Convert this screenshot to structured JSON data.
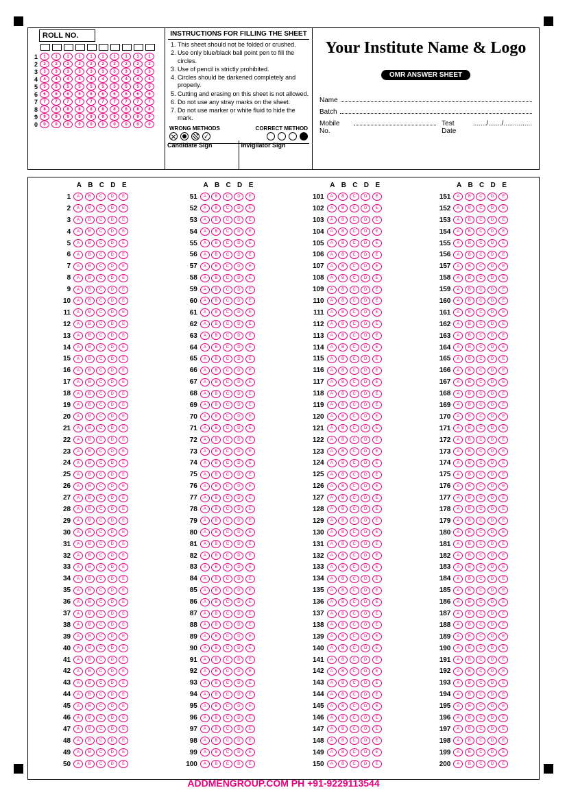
{
  "roll": {
    "title": "ROLL NO.",
    "columns": 10,
    "digits": [
      "1",
      "2",
      "3",
      "4",
      "5",
      "6",
      "7",
      "8",
      "9",
      "0"
    ]
  },
  "instructions": {
    "title": "INSTRUCTIONS FOR FILLING THE SHEET",
    "items": [
      "This sheet should not be folded or crushed.",
      "Use only blue/black ball point pen to fill the circles.",
      "Use of pencil is strictly prohibited.",
      "Circles should be darkened completely and properly.",
      "Cutting and erasing on this sheet is not allowed.",
      "Do not use any stray marks on the sheet.",
      "Do not use marker or white fluid to hide the mark."
    ],
    "wrong_label": "WRONG METHODS",
    "correct_label": "CORRECT METHOD",
    "candidate_sign": "Candidate Sign",
    "invigilator_sign": "Invigilator Sign"
  },
  "header": {
    "institute": "Your Institute Name & Logo",
    "badge": "OMR ANSWER SHEET",
    "name_lbl": "Name",
    "batch_lbl": "Batch",
    "mobile_lbl": "Mobile No.",
    "date_lbl": "Test Date",
    "date_sep": "......./......./..............."
  },
  "answers": {
    "options": [
      "A",
      "B",
      "C",
      "D",
      "E"
    ],
    "total": 200,
    "per_column": 50,
    "columns": [
      {
        "start": 1,
        "end": 50
      },
      {
        "start": 51,
        "end": 100
      },
      {
        "start": 101,
        "end": 150
      },
      {
        "start": 151,
        "end": 200
      }
    ]
  },
  "footer": {
    "text": "ADDMENGROUP.COM    PH +91-9229113544"
  },
  "colors": {
    "bubble": "#E6007E",
    "border": "#000000"
  }
}
